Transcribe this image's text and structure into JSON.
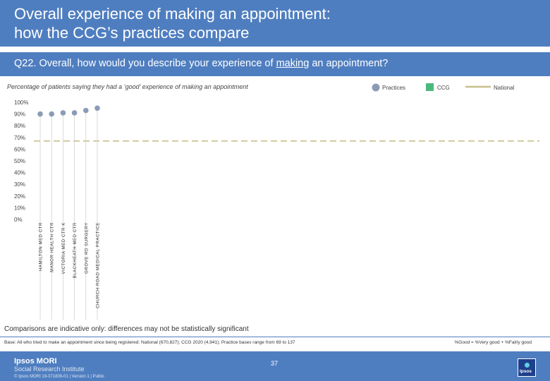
{
  "header": {
    "title_line1": "Overall experience of making an appointment:",
    "title_line2": "how the CCG’s practices compare"
  },
  "question": {
    "prefix": "Q22. Overall, how would you describe your experience of ",
    "underlined": "making",
    "suffix": " an appointment?"
  },
  "legend": {
    "practices": "Practices",
    "ccg": "CCG",
    "national": "National"
  },
  "colors": {
    "practices": "#8c9bb5",
    "ccg": "#4cb87c",
    "national": "#c8bf8a",
    "brand": "#4f7ec0"
  },
  "chart_data": {
    "type": "scatter",
    "title": "Percentage of patients saying they had a ‘good’ experience of making an appointment",
    "categories": [
      "HAMILTON MED CTR",
      "MANOR HEALTH CTR",
      "VICTORIA MED CTR K",
      "BLACKHEATH MED CTR",
      "GROVE RD SURGERY",
      "CHURCH ROAD MEDICAL PRACTICE"
    ],
    "series": [
      {
        "name": "Practices",
        "values": [
          90,
          90,
          91,
          91,
          93,
          95
        ]
      }
    ],
    "reference_lines": [
      {
        "name": "National",
        "value": 67
      }
    ],
    "ylim": [
      0,
      100
    ],
    "yticks": [
      0,
      10,
      20,
      30,
      40,
      50,
      60,
      70,
      80,
      90,
      100
    ],
    "ytick_labels": [
      "0%",
      "10%",
      "20%",
      "30%",
      "40%",
      "50%",
      "60%",
      "70%",
      "80%",
      "90%",
      "100%"
    ],
    "grid": false,
    "legend_position": "top-right"
  },
  "notes": {
    "comparisons": "Comparisons are indicative only: differences may not be statistically significant",
    "base": "Base: All who tried to make an appointment since being registered: National (670,827); CCG 2020 (4,941); Practice bases range from 69 to 137",
    "good_def": "%Good = %Very good + %Fairly good"
  },
  "footer": {
    "logo_main": "Ipsos MORI",
    "logo_sub": "Social Research Institute",
    "copyright": "© Ipsos MORI     19-071809-01 | Version 1 | Public",
    "page_number": "37",
    "badge_word": "Ipsos"
  }
}
